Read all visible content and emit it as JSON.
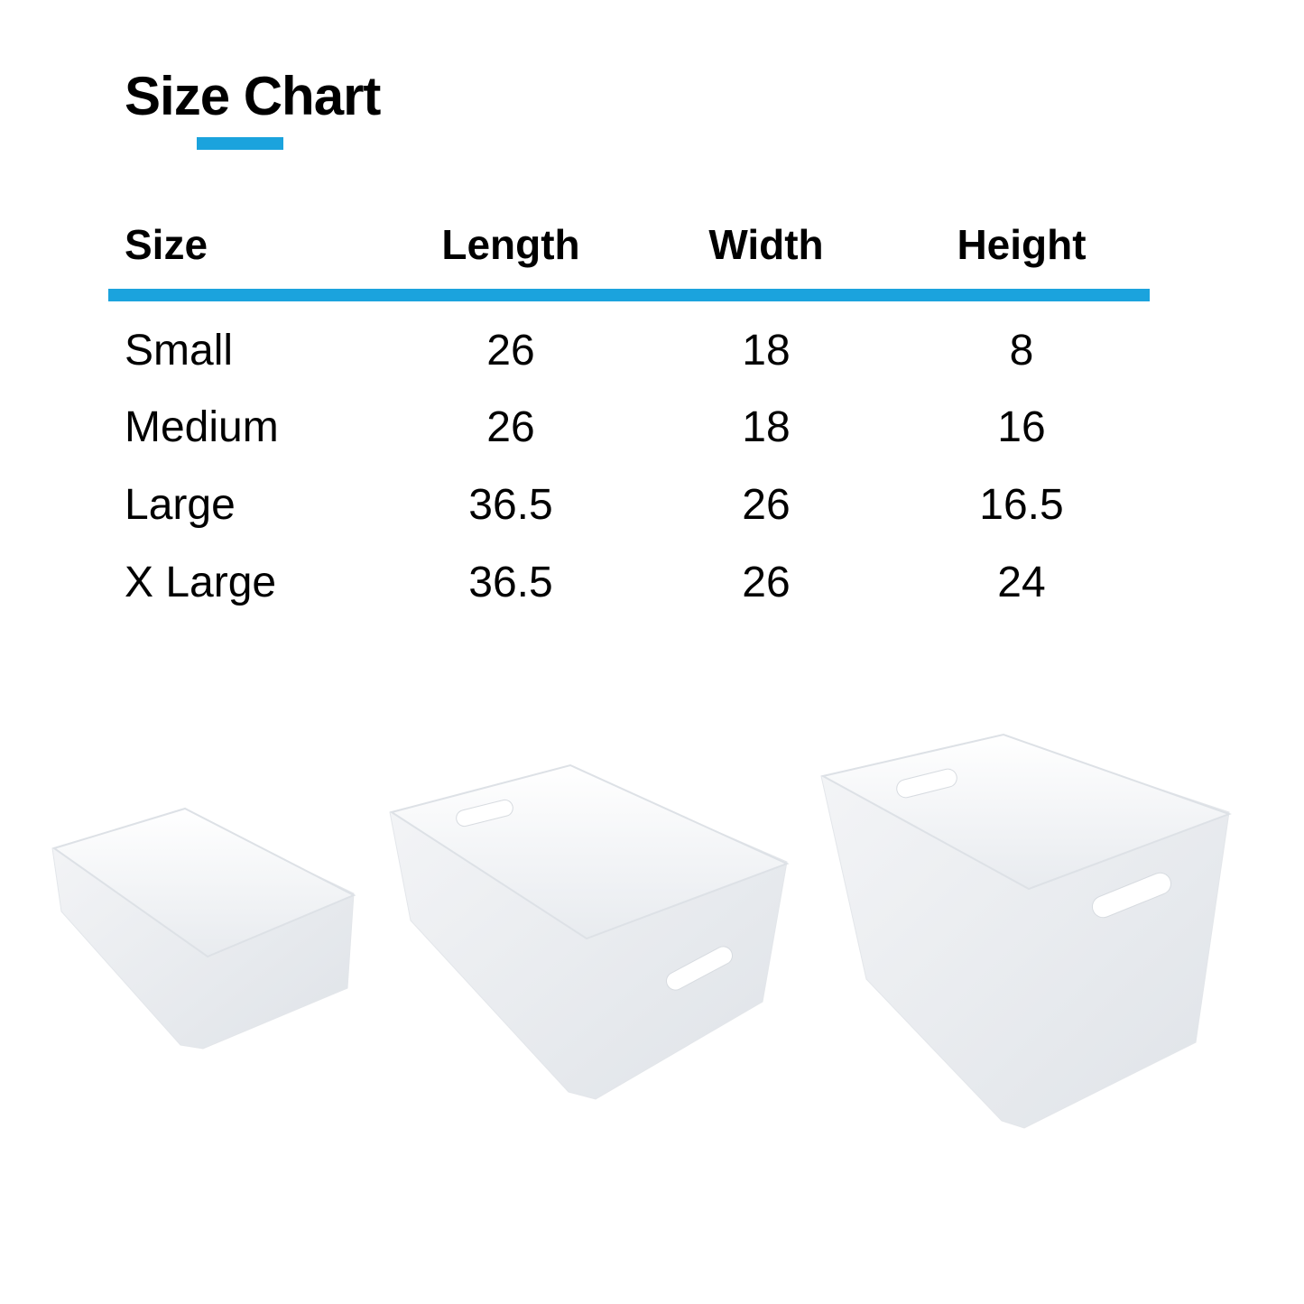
{
  "title": "Size Chart",
  "accent_color": "#1BA3DD",
  "table": {
    "headers": [
      "Size",
      "Length",
      "Width",
      "Height"
    ],
    "rows": [
      [
        "Small",
        "26",
        "18",
        "8"
      ],
      [
        "Medium",
        "26",
        "18",
        "16"
      ],
      [
        "Large",
        "36.5",
        "26",
        "16.5"
      ],
      [
        "X Large",
        "36.5",
        "26",
        "24"
      ]
    ]
  },
  "images": [
    "white-storage-bin-small",
    "white-storage-bin-medium",
    "white-storage-bin-large"
  ]
}
